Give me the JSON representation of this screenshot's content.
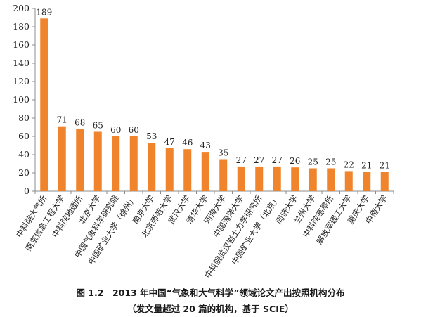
{
  "chart_data": {
    "type": "bar",
    "categories": [
      "中科院大气所",
      "南京信息工程大学",
      "中科院地理所",
      "北京大学",
      "中国气象科学研究院",
      "中国矿业大学（徐州）",
      "南京大学",
      "北京师范大学",
      "武汉大学",
      "清华大学",
      "河海大学",
      "中国海洋大学",
      "中科院武汉岩土力学研究所",
      "中国矿业大学（北京）",
      "同济大学",
      "兰州大学",
      "中科院寒旱所",
      "解放军理工大学",
      "重庆大学",
      "中南大学"
    ],
    "values": [
      189,
      71,
      68,
      65,
      60,
      60,
      53,
      47,
      46,
      43,
      35,
      27,
      27,
      27,
      26,
      25,
      25,
      22,
      21,
      21
    ],
    "ylim": [
      0,
      200
    ],
    "yticks": [
      "0",
      "20",
      "40",
      "60",
      "80",
      "100",
      "120",
      "140",
      "160",
      "180",
      "200"
    ],
    "data_labels": [
      "189",
      "71",
      "68",
      "65",
      "60",
      "60",
      "53",
      "47",
      "46",
      "43",
      "35",
      "27",
      "27",
      "27",
      "26",
      "25",
      "25",
      "22",
      "21",
      "21"
    ],
    "title": "图 1.2　2013 年中国“气象和大气科学”领域论文产出按照机构分布",
    "subtitle": "（发文量超过 20 篇的机构，基于 SCIE）",
    "grid": false,
    "legend": "none",
    "bar_color": "#F0842C"
  }
}
